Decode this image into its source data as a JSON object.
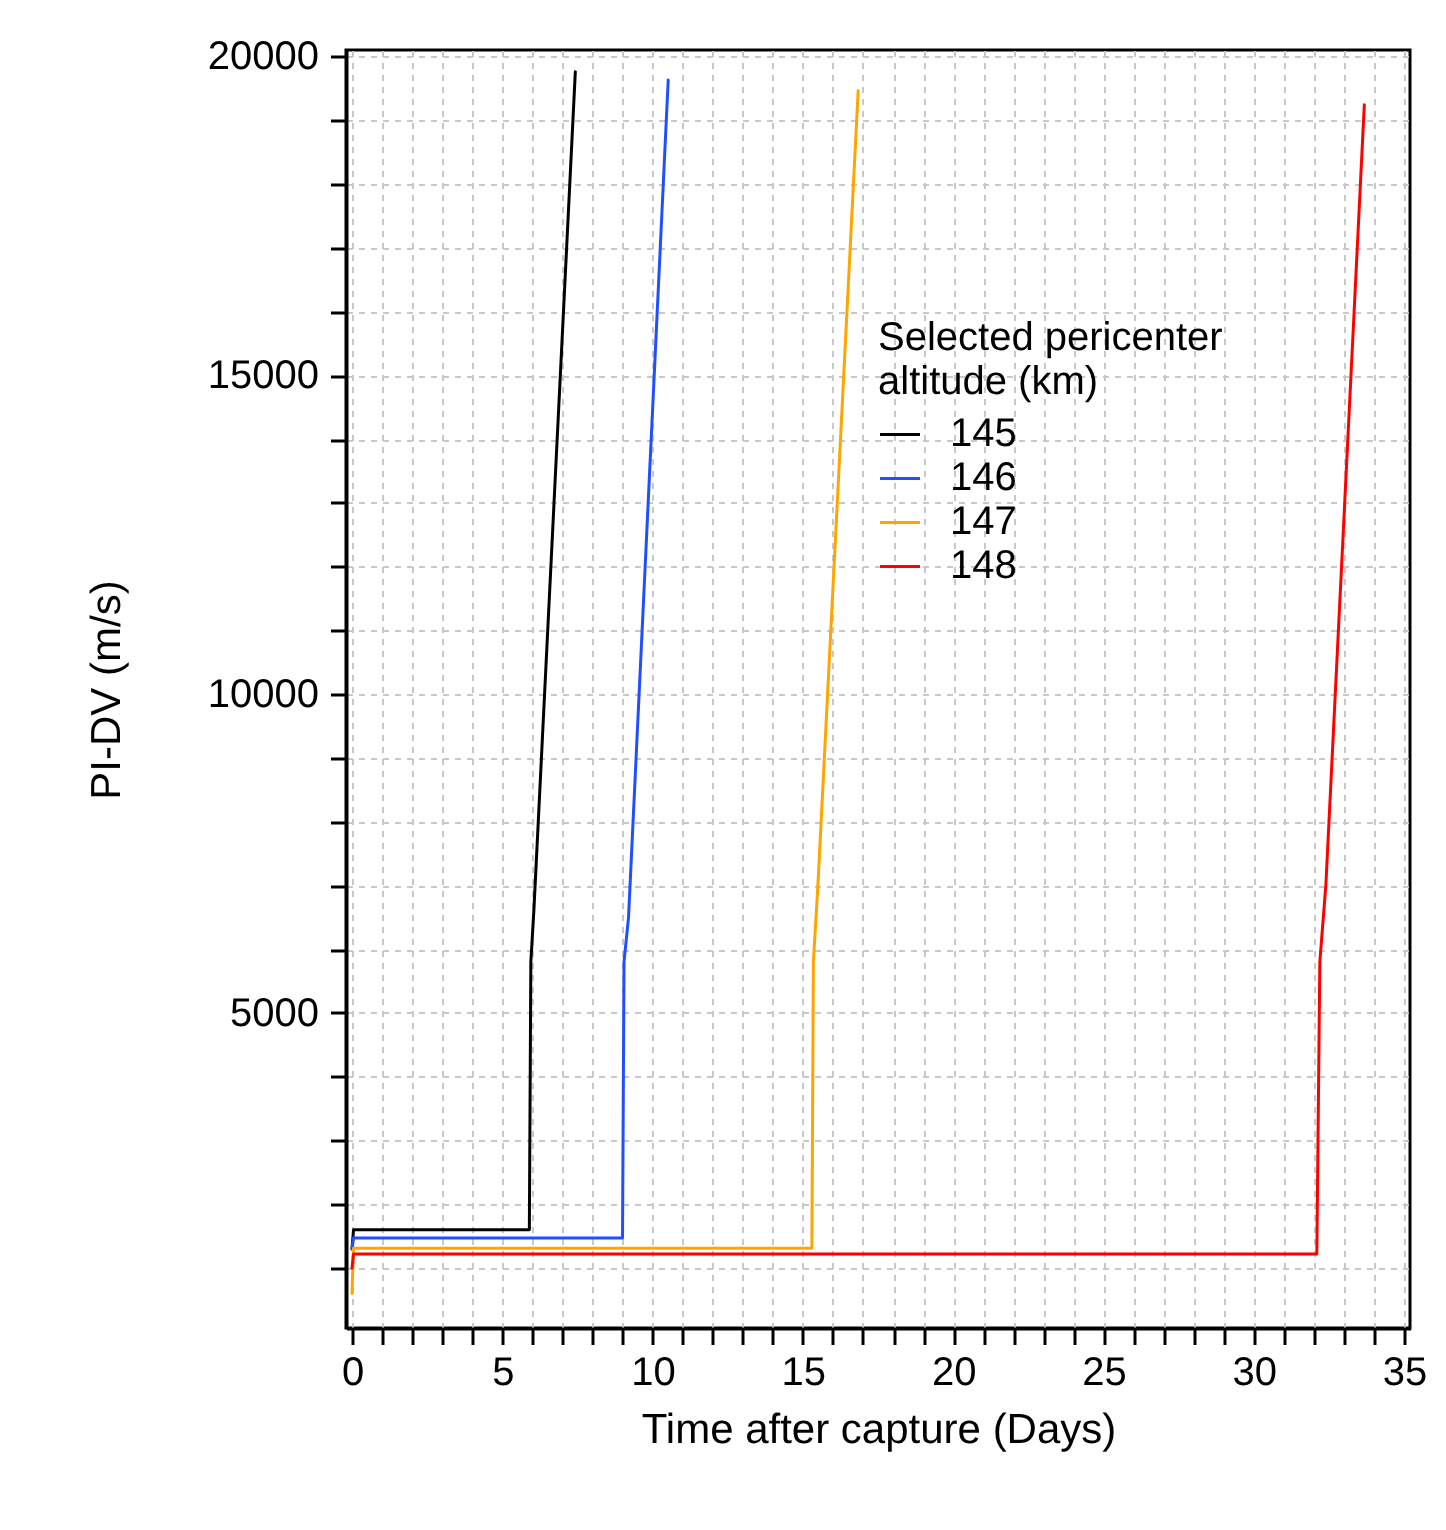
{
  "chart_data": {
    "type": "line",
    "xlabel": "Time after capture (Days)",
    "ylabel": "PI-DV (m/s)",
    "legend_title": "Selected pericenter altitude (km)",
    "xlim": [
      -0.2,
      35.2
    ],
    "ylim": [
      60,
      20100
    ],
    "xticks": [
      0,
      {
        "value": 1,
        "label": null
      },
      {
        "value": 2,
        "label": null
      },
      {
        "value": 3,
        "label": null
      },
      {
        "value": 4,
        "label": null
      },
      5,
      {
        "value": 6,
        "label": null
      },
      {
        "value": 7,
        "label": null
      },
      {
        "value": 8,
        "label": null
      },
      {
        "value": 9,
        "label": null
      },
      10,
      {
        "value": 11,
        "label": null
      },
      {
        "value": 12,
        "label": null
      },
      {
        "value": 13,
        "label": null
      },
      {
        "value": 14,
        "label": null
      },
      15,
      {
        "value": 16,
        "label": null
      },
      {
        "value": 17,
        "label": null
      },
      {
        "value": 18,
        "label": null
      },
      {
        "value": 19,
        "label": null
      },
      20,
      {
        "value": 21,
        "label": null
      },
      {
        "value": 22,
        "label": null
      },
      {
        "value": 23,
        "label": null
      },
      {
        "value": 24,
        "label": null
      },
      25,
      {
        "value": 26,
        "label": null
      },
      {
        "value": 27,
        "label": null
      },
      {
        "value": 28,
        "label": null
      },
      {
        "value": 29,
        "label": null
      },
      30,
      {
        "value": 31,
        "label": null
      },
      {
        "value": 32,
        "label": null
      },
      {
        "value": 33,
        "label": null
      },
      {
        "value": 34,
        "label": null
      },
      35
    ],
    "yticks": [
      {
        "value": 1000,
        "label": null
      },
      {
        "value": 2000,
        "label": null
      },
      {
        "value": 3000,
        "label": null
      },
      {
        "value": 4000,
        "label": null
      },
      5000,
      {
        "value": 6000,
        "label": null
      },
      {
        "value": 7000,
        "label": null
      },
      {
        "value": 8000,
        "label": null
      },
      {
        "value": 9000,
        "label": null
      },
      10000,
      {
        "value": 11000,
        "label": null
      },
      {
        "value": 12000,
        "label": null
      },
      {
        "value": 13000,
        "label": null
      },
      {
        "value": 14000,
        "label": null
      },
      15000,
      {
        "value": 16000,
        "label": null
      },
      {
        "value": 17000,
        "label": null
      },
      {
        "value": 18000,
        "label": null
      },
      {
        "value": 19000,
        "label": null
      },
      20000
    ],
    "grid": true,
    "legend": "top right",
    "line_style": "solid",
    "series": [
      {
        "name": "145",
        "color": "#000000",
        "x": [
          0,
          0.05,
          5.9,
          5.95,
          6.05,
          7.43
        ],
        "values": [
          1300,
          1600,
          1600,
          5800,
          6600,
          19760
        ]
      },
      {
        "name": "146",
        "color": "#1f4fff",
        "x": [
          0,
          0.05,
          9.0,
          9.05,
          9.2,
          10.52
        ],
        "values": [
          1300,
          1470,
          1470,
          5800,
          6500,
          19630
        ]
      },
      {
        "name": "147",
        "color": "#ffa500",
        "x": [
          0,
          0.05,
          15.3,
          15.35,
          15.5,
          16.84
        ],
        "values": [
          600,
          1310,
          1310,
          5800,
          7000,
          19460
        ]
      },
      {
        "name": "148",
        "color": "#ff0000",
        "x": [
          0,
          0.05,
          32.1,
          32.2,
          32.4,
          33.68
        ],
        "values": [
          1000,
          1220,
          1220,
          5800,
          7000,
          19240
        ]
      }
    ]
  }
}
